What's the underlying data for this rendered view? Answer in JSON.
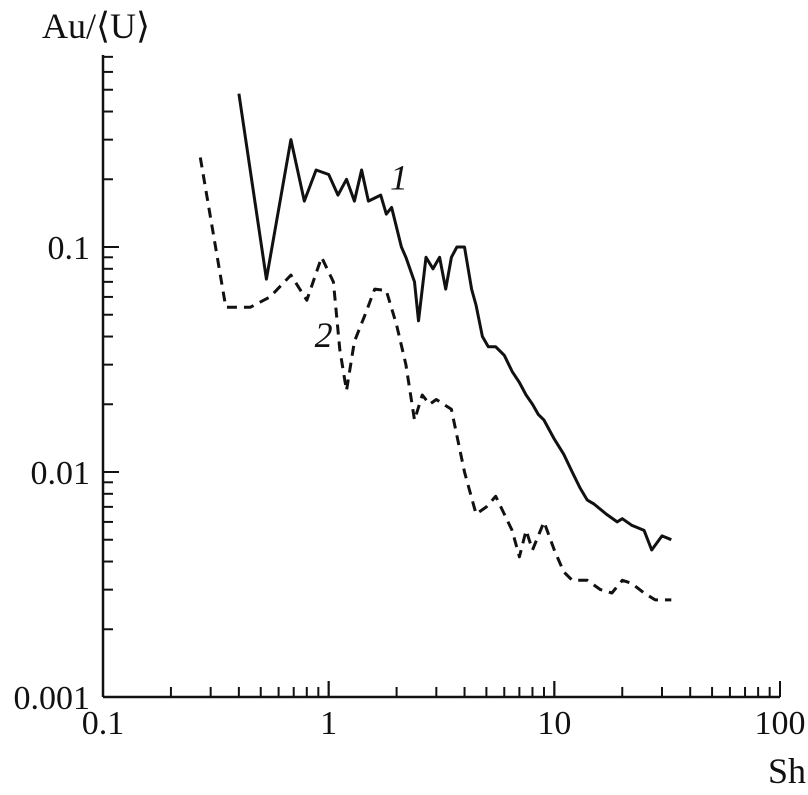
{
  "chart_data": {
    "type": "line",
    "xlabel": "Sh",
    "ylabel": "Au/⟨U⟩",
    "x_scale": "log",
    "y_scale": "log",
    "xlim": [
      0.1,
      100
    ],
    "ylim": [
      0.001,
      0.6
    ],
    "x_ticks": [
      {
        "value": 0.1,
        "label": "0.1"
      },
      {
        "value": 1,
        "label": "1"
      },
      {
        "value": 10,
        "label": "10"
      },
      {
        "value": 100,
        "label": "100"
      }
    ],
    "y_ticks": [
      {
        "value": 0.001,
        "label": "0.001"
      },
      {
        "value": 0.01,
        "label": "0.01"
      },
      {
        "value": 0.1,
        "label": "0.1"
      }
    ],
    "grid": false,
    "series": [
      {
        "name": "1",
        "style": "solid",
        "color": "#111111",
        "x": [
          0.4,
          0.53,
          0.68,
          0.78,
          0.88,
          1.0,
          1.1,
          1.2,
          1.3,
          1.4,
          1.5,
          1.7,
          1.8,
          1.9,
          2.1,
          2.2,
          2.4,
          2.5,
          2.7,
          2.9,
          3.1,
          3.3,
          3.5,
          3.7,
          4.0,
          4.3,
          4.5,
          4.8,
          5.1,
          5.5,
          6.0,
          6.5,
          7.0,
          7.5,
          8.0,
          8.5,
          9.0,
          10.0,
          11.0,
          12.0,
          13.0,
          14.0,
          15.0,
          17.0,
          19.0,
          20.0,
          22.0,
          25.0,
          27.0,
          30.0,
          33.0
        ],
        "values": [
          0.48,
          0.072,
          0.3,
          0.16,
          0.22,
          0.21,
          0.17,
          0.2,
          0.16,
          0.22,
          0.16,
          0.17,
          0.14,
          0.15,
          0.1,
          0.09,
          0.07,
          0.047,
          0.09,
          0.08,
          0.09,
          0.065,
          0.09,
          0.1,
          0.1,
          0.065,
          0.055,
          0.04,
          0.036,
          0.036,
          0.033,
          0.028,
          0.025,
          0.022,
          0.02,
          0.018,
          0.017,
          0.014,
          0.012,
          0.01,
          0.0085,
          0.0075,
          0.0072,
          0.0065,
          0.006,
          0.0062,
          0.0058,
          0.0055,
          0.0045,
          0.0052,
          0.005
        ]
      },
      {
        "name": "2",
        "style": "dashed",
        "color": "#111111",
        "x": [
          0.27,
          0.35,
          0.45,
          0.55,
          0.68,
          0.8,
          0.93,
          1.05,
          1.12,
          1.2,
          1.3,
          1.45,
          1.6,
          1.8,
          2.0,
          2.2,
          2.4,
          2.6,
          2.8,
          3.0,
          3.5,
          4.0,
          4.5,
          5.0,
          5.5,
          6.0,
          6.5,
          7.0,
          7.5,
          8.0,
          9.0,
          10.0,
          11.0,
          12.0,
          14.0,
          16.0,
          18.0,
          20.0,
          22.0,
          25.0,
          28.0,
          33.0
        ],
        "values": [
          0.25,
          0.054,
          0.054,
          0.06,
          0.075,
          0.058,
          0.09,
          0.07,
          0.035,
          0.023,
          0.038,
          0.05,
          0.065,
          0.064,
          0.045,
          0.03,
          0.017,
          0.022,
          0.02,
          0.021,
          0.019,
          0.01,
          0.0065,
          0.007,
          0.0078,
          0.0065,
          0.0055,
          0.0042,
          0.0055,
          0.0045,
          0.006,
          0.0045,
          0.0036,
          0.0033,
          0.0033,
          0.003,
          0.0029,
          0.0033,
          0.0032,
          0.0029,
          0.0027,
          0.0027
        ]
      }
    ],
    "annotations": [
      {
        "text": "1",
        "x": 2.05,
        "y": 0.18
      },
      {
        "text": "2",
        "x": 0.95,
        "y": 0.036
      }
    ]
  }
}
